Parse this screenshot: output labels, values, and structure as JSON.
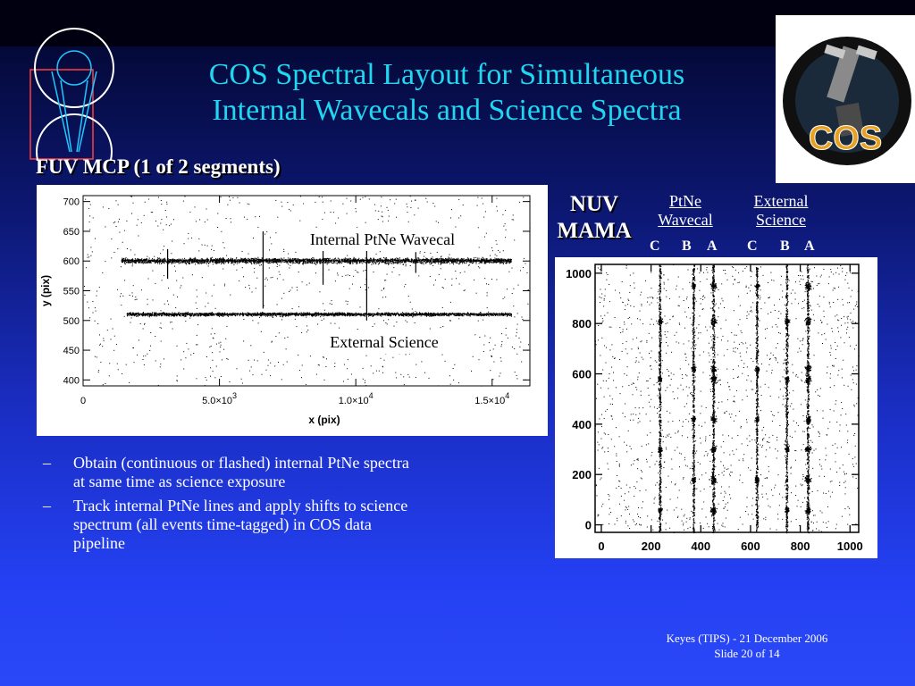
{
  "slide": {
    "title_line1": "COS Spectral Layout for Simultaneous",
    "title_line2": "Internal Wavecals and Science Spectra",
    "fuv_label": "FUV MCP (1 of 2 segments)",
    "nuv_label_line1": "NUV",
    "nuv_label_line2": "MAMA",
    "ptne_head_line1": "PtNe",
    "ptne_head_line2": "Wavecal",
    "external_head_line1": "External",
    "external_head_line2": "Science",
    "ptne_letters": [
      "C",
      "B",
      "A"
    ],
    "external_letters": [
      "C",
      "B",
      "A"
    ],
    "bullets": [
      {
        "dash": "–",
        "text_line1": "Obtain (continuous or flashed) internal PtNe spectra",
        "text_line2": "at same time as science exposure"
      },
      {
        "dash": "–",
        "text_line1": "Track internal PtNe lines and apply shifts to science",
        "text_line2": "spectrum (all events time-tagged) in COS data",
        "text_line3": "pipeline"
      }
    ],
    "footer_line1": "Keyes (TIPS) - 21 December 2006",
    "footer_line2": "Slide 20 of  14",
    "colors": {
      "title": "#21d6f0",
      "text": "#ffffff",
      "background": "#1a2ec4"
    }
  },
  "chart_data": [
    {
      "type": "scatter",
      "title": "",
      "xlabel": "x (pix)",
      "ylabel": "y (pix)",
      "xlim": [
        0,
        16384
      ],
      "ylim": [
        390,
        710
      ],
      "x_ticks": [
        0,
        5000,
        10000,
        15000
      ],
      "x_tick_labels": [
        "0",
        "5.0×10",
        "1.0×10",
        "1.5×10"
      ],
      "x_tick_exponents": [
        "",
        "3",
        "4",
        "4"
      ],
      "y_ticks": [
        400,
        450,
        500,
        550,
        600,
        650,
        700
      ],
      "y_tick_labels": [
        "400",
        "450",
        "500",
        "550",
        "600",
        "650",
        "700"
      ],
      "annotations": [
        "Internal PtNe Wavecal",
        "External Science"
      ],
      "series": [
        {
          "name": "",
          "stripe_y_center": 601,
          "x_range": [
            1400,
            15700
          ]
        },
        {
          "name": "",
          "stripe_y_center": 511,
          "x_range": [
            1600,
            15700
          ]
        }
      ],
      "background_noise": true,
      "grid": false
    },
    {
      "type": "scatter",
      "title": "",
      "xlabel": "",
      "ylabel": "",
      "xlim": [
        -25,
        1035
      ],
      "ylim": [
        -30,
        1035
      ],
      "x_ticks": [
        0,
        200,
        400,
        600,
        800,
        1000
      ],
      "x_tick_labels": [
        "0",
        "200",
        "400",
        "600",
        "800",
        "1000"
      ],
      "y_ticks": [
        0,
        200,
        400,
        600,
        800,
        1000
      ],
      "y_tick_labels": [
        "0",
        "200",
        "400",
        "600",
        "800",
        "1000"
      ],
      "columns": [
        {
          "group": "PtNe Wavecal",
          "letter": "C",
          "x": 235
        },
        {
          "group": "PtNe Wavecal",
          "letter": "B",
          "x": 370
        },
        {
          "group": "PtNe Wavecal",
          "letter": "A",
          "x": 450
        },
        {
          "group": "External Science",
          "letter": "C",
          "x": 625
        },
        {
          "group": "External Science",
          "letter": "B",
          "x": 745
        },
        {
          "group": "External Science",
          "letter": "A",
          "x": 830
        }
      ],
      "blob_y_values": [
        60,
        180,
        300,
        420,
        580,
        620,
        810,
        950
      ],
      "background_noise": true,
      "grid": false
    }
  ]
}
